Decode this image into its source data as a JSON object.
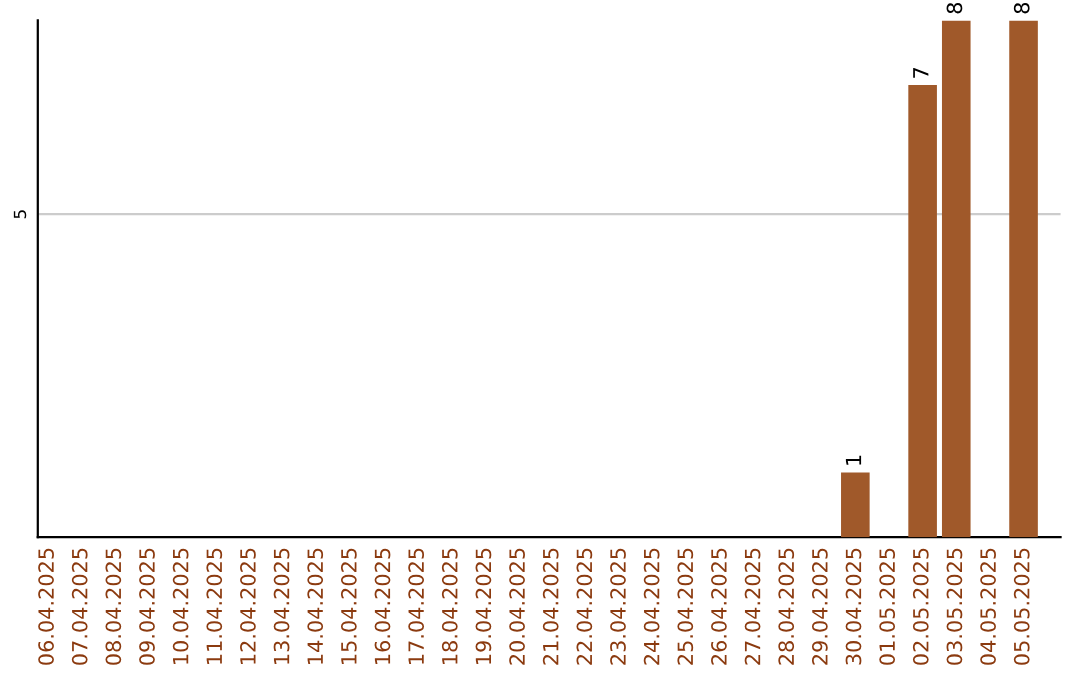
{
  "chart_data": {
    "type": "bar",
    "ylim": [
      0,
      8
    ],
    "yticks": [
      5
    ],
    "grid": "y",
    "categories": [
      "06.04.2025",
      "07.04.2025",
      "08.04.2025",
      "09.04.2025",
      "10.04.2025",
      "11.04.2025",
      "12.04.2025",
      "13.04.2025",
      "14.04.2025",
      "15.04.2025",
      "16.04.2025",
      "17.04.2025",
      "18.04.2025",
      "19.04.2025",
      "20.04.2025",
      "21.04.2025",
      "22.04.2025",
      "23.04.2025",
      "24.04.2025",
      "25.04.2025",
      "26.04.2025",
      "27.04.2025",
      "28.04.2025",
      "29.04.2025",
      "30.04.2025",
      "01.05.2025",
      "02.05.2025",
      "03.05.2025",
      "04.05.2025",
      "05.05.2025"
    ],
    "values": [
      null,
      null,
      null,
      null,
      null,
      null,
      null,
      null,
      null,
      null,
      null,
      null,
      null,
      null,
      null,
      null,
      null,
      null,
      null,
      null,
      null,
      null,
      null,
      null,
      1,
      null,
      7,
      8,
      null,
      8
    ],
    "data_labels": true,
    "color": "#a0592a"
  }
}
